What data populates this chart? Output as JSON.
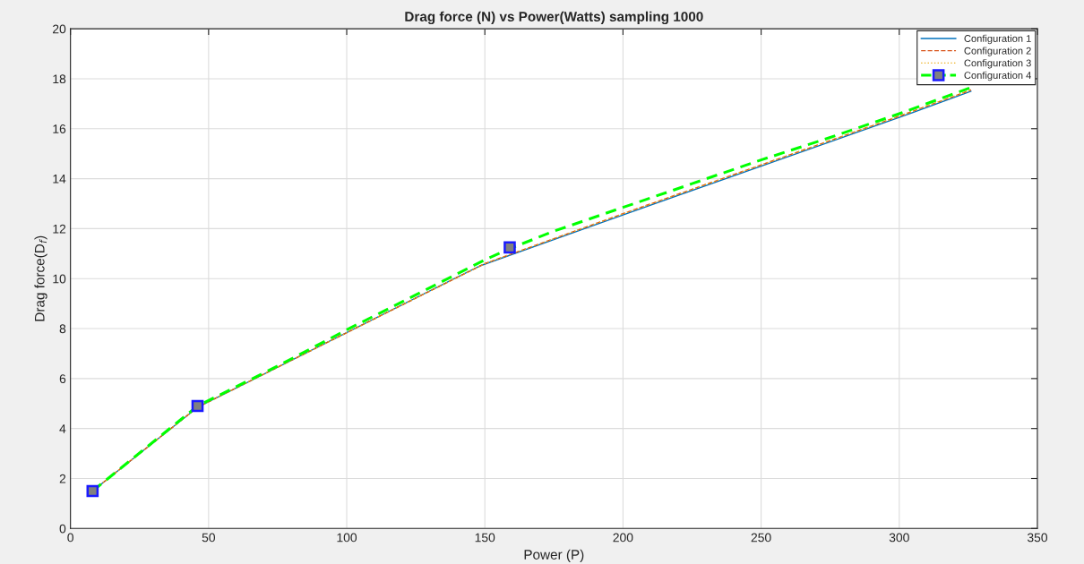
{
  "chart_data": {
    "type": "line",
    "title": "Drag force (N) vs Power(Watts) sampling 1000",
    "xlabel": "Power (P)",
    "ylabel": "Drag force(D$_{f}$)",
    "xlim": [
      0,
      350
    ],
    "xticks": [
      0,
      50,
      100,
      150,
      200,
      250,
      300,
      350
    ],
    "ylim": [
      0,
      20
    ],
    "yticks": [
      0,
      2,
      4,
      6,
      8,
      10,
      12,
      14,
      16,
      18,
      20
    ],
    "grid": true,
    "legend": "top right",
    "series": [
      {
        "name": "Configuration 1",
        "color": "#0072bd",
        "line_style": "solid",
        "x": [
          8,
          46,
          148,
          200,
          250,
          300,
          326
        ],
        "values": [
          1.5,
          4.85,
          10.5,
          12.55,
          14.5,
          16.45,
          17.5
        ]
      },
      {
        "name": "Configuration 2",
        "color": "#d95319",
        "line_style": "dashed",
        "x": [
          8,
          46,
          150,
          200,
          250,
          300,
          326
        ],
        "values": [
          1.5,
          4.85,
          10.6,
          12.6,
          14.55,
          16.5,
          17.55
        ]
      },
      {
        "name": "Configuration 3",
        "color": "#edb120",
        "line_style": "dotted",
        "x": [
          8,
          46,
          150,
          200,
          250,
          300,
          326
        ],
        "values": [
          1.5,
          4.85,
          10.6,
          12.6,
          14.55,
          16.5,
          17.55
        ]
      },
      {
        "name": "Configuration 4",
        "color": "#00ff00",
        "line_style": "dashed",
        "x": [
          8,
          46,
          75,
          100,
          125,
          150,
          159,
          175,
          200,
          225,
          250,
          275,
          300,
          326
        ],
        "values": [
          1.5,
          4.9,
          6.5,
          7.95,
          9.35,
          10.75,
          11.2,
          11.9,
          12.85,
          13.8,
          14.75,
          15.65,
          16.6,
          17.65
        ]
      },
      {
        "type": "scatter",
        "color": "#808080",
        "marker": "square",
        "x": [
          8,
          46,
          159
        ],
        "values": [
          1.5,
          4.9,
          11.25
        ]
      }
    ]
  }
}
